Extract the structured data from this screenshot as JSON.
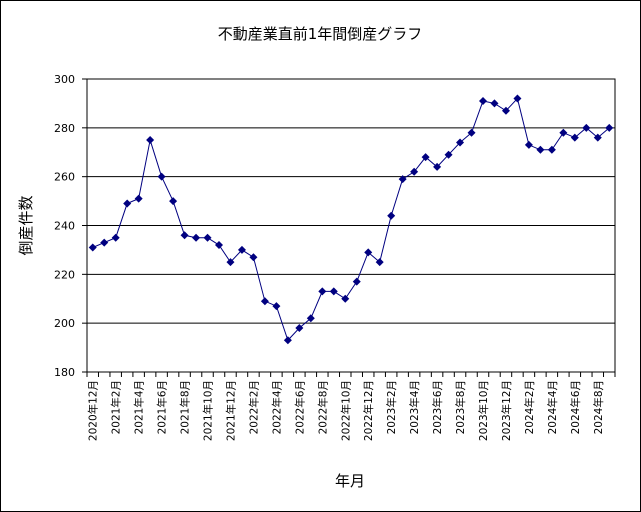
{
  "chart_data": {
    "type": "line",
    "title": "不動産業直前1年間倒産グラフ",
    "xlabel": "年月",
    "ylabel": "倒産件数",
    "ylim": [
      180,
      300
    ],
    "yticks": [
      180,
      200,
      220,
      240,
      260,
      280,
      300
    ],
    "grid": true,
    "series_color": "#000080",
    "tick_labels": [
      "2020年12月",
      "2021年2月",
      "2021年4月",
      "2021年6月",
      "2021年8月",
      "2021年10月",
      "2021年12月",
      "2022年2月",
      "2022年4月",
      "2022年6月",
      "2022年8月",
      "2022年10月",
      "2022年12月",
      "2023年2月",
      "2023年4月",
      "2023年6月",
      "2023年8月",
      "2023年10月",
      "2023年12月",
      "2024年2月",
      "2024年4月",
      "2024年6月",
      "2024年8月"
    ],
    "series": [
      {
        "values": [
          231,
          233,
          235,
          249,
          251,
          275,
          260,
          250,
          236,
          235,
          235,
          232,
          225,
          230,
          227,
          209,
          207,
          193,
          198,
          202,
          213,
          213,
          210,
          217,
          229,
          225,
          244,
          259,
          262,
          268,
          264,
          269,
          274,
          278,
          291,
          290,
          287,
          292,
          273,
          271,
          271,
          278,
          276,
          280,
          276,
          280
        ]
      }
    ]
  }
}
